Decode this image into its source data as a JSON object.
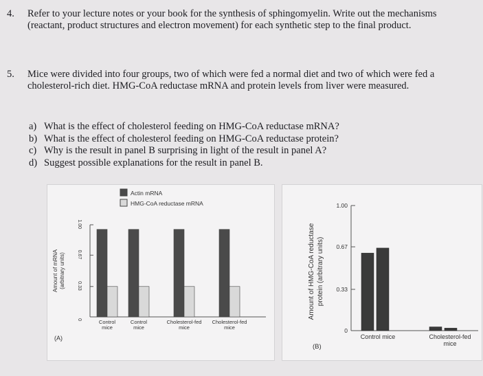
{
  "q4": {
    "number": "4.",
    "text": "Refer to your lecture notes or your book for the synthesis of sphingomyelin. Write out the mechanisms (reactant, product structures and electron movement) for each synthetic step to the final product."
  },
  "q5": {
    "number": "5.",
    "text": "Mice were divided into four groups, two of which were fed a normal diet and two of which were fed a cholesterol-rich diet. HMG-CoA reductase mRNA and protein levels from liver were measured.",
    "subquestions": [
      {
        "letter": "a)",
        "text": "What is the effect of cholesterol feeding on HMG-CoA reductase mRNA?"
      },
      {
        "letter": "b)",
        "text": "What is the effect of cholesterol feeding on HMG-CoA reductase protein?"
      },
      {
        "letter": "c)",
        "text": "Why is the result in panel B surprising in light of the result in panel A?"
      },
      {
        "letter": "d)",
        "text": "Suggest possible explanations for the result in panel B."
      }
    ]
  },
  "chart_data": [
    {
      "type": "bar",
      "panel_label": "(A)",
      "ylabel": "Amount of mRNA (arbitrary units)",
      "yticks": [
        "0",
        "0.33",
        "0.67",
        "1.00"
      ],
      "ylim": [
        0,
        1.0
      ],
      "categories": [
        "Control mice",
        "Control mice",
        "Cholesterol-fed mice",
        "Cholesterol-fed mice"
      ],
      "series": [
        {
          "name": "Actin mRNA",
          "color": "#4a4a4a",
          "values": [
            0.95,
            0.95,
            0.95,
            0.95
          ]
        },
        {
          "name": "HMG-CoA reductase mRNA",
          "color": "#d9d9d9",
          "values": [
            0.33,
            0.33,
            0.33,
            0.33
          ]
        }
      ],
      "legend": "top-center"
    },
    {
      "type": "bar",
      "panel_label": "(B)",
      "ylabel": "Amount of HMG-CoA reductase protein (arbitrary units)",
      "yticks": [
        "0",
        "0.33",
        "0.67",
        "1.00"
      ],
      "ylim": [
        0,
        1.0
      ],
      "categories": [
        "Control mice",
        "Cholesterol-fed mice"
      ],
      "bars": [
        {
          "group": 0,
          "values": [
            0.62,
            0.66
          ],
          "color": "#3a3a3a"
        },
        {
          "group": 1,
          "values": [
            0.03,
            0.02
          ],
          "color": "#3a3a3a"
        }
      ]
    }
  ]
}
